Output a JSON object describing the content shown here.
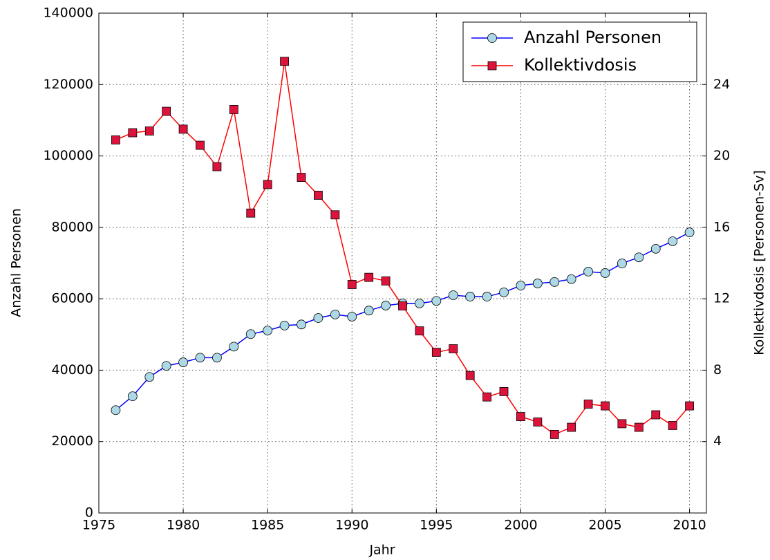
{
  "chart_data": {
    "type": "line",
    "x_label": "Jahr",
    "y_label": "Anzahl Personen",
    "y2_label": "Kollektivdosis [Personen-Sv]",
    "x": [
      1976,
      1977,
      1978,
      1979,
      1980,
      1981,
      1982,
      1983,
      1984,
      1985,
      1986,
      1987,
      1988,
      1989,
      1990,
      1991,
      1992,
      1993,
      1994,
      1995,
      1996,
      1997,
      1998,
      1999,
      2000,
      2001,
      2002,
      2003,
      2004,
      2005,
      2006,
      2007,
      2008,
      2009,
      2010
    ],
    "series": [
      {
        "name": "Anzahl Personen",
        "color": "#0000ff",
        "marker": "circle",
        "marker_color": "#add8e6",
        "axis": "y",
        "values": [
          28800,
          32700,
          38100,
          41200,
          42200,
          43500,
          43500,
          46600,
          50100,
          51100,
          52500,
          52800,
          54600,
          55600,
          55000,
          56700,
          58100,
          58700,
          58700,
          59400,
          61000,
          60600,
          60600,
          61800,
          63700,
          64300,
          64700,
          65500,
          67600,
          67200,
          69900,
          71600,
          74000,
          76100,
          78600
        ]
      },
      {
        "name": "Kollektivdosis",
        "color": "#ff0000",
        "marker": "square",
        "marker_color": "#dc143c",
        "axis": "y2",
        "values": [
          20.9,
          21.3,
          21.4,
          22.5,
          21.5,
          20.6,
          19.4,
          22.6,
          16.8,
          18.4,
          25.3,
          18.8,
          17.8,
          16.7,
          12.8,
          13.2,
          13.0,
          11.6,
          10.2,
          9.0,
          9.2,
          7.7,
          6.5,
          6.8,
          5.4,
          5.1,
          4.4,
          4.8,
          6.1,
          6.0,
          5.0,
          4.8,
          5.5,
          4.9,
          6.0
        ]
      }
    ],
    "xlim": [
      1975,
      2011
    ],
    "xticks": [
      1975,
      1980,
      1985,
      1990,
      1995,
      2000,
      2005,
      2010
    ],
    "ylim": [
      0,
      140000
    ],
    "yticks": [
      0,
      20000,
      40000,
      60000,
      80000,
      100000,
      120000,
      140000
    ],
    "y2lim": [
      0,
      28
    ],
    "y2ticks": [
      4,
      8,
      12,
      16,
      20,
      24
    ],
    "grid": true,
    "legend": "upper right"
  }
}
